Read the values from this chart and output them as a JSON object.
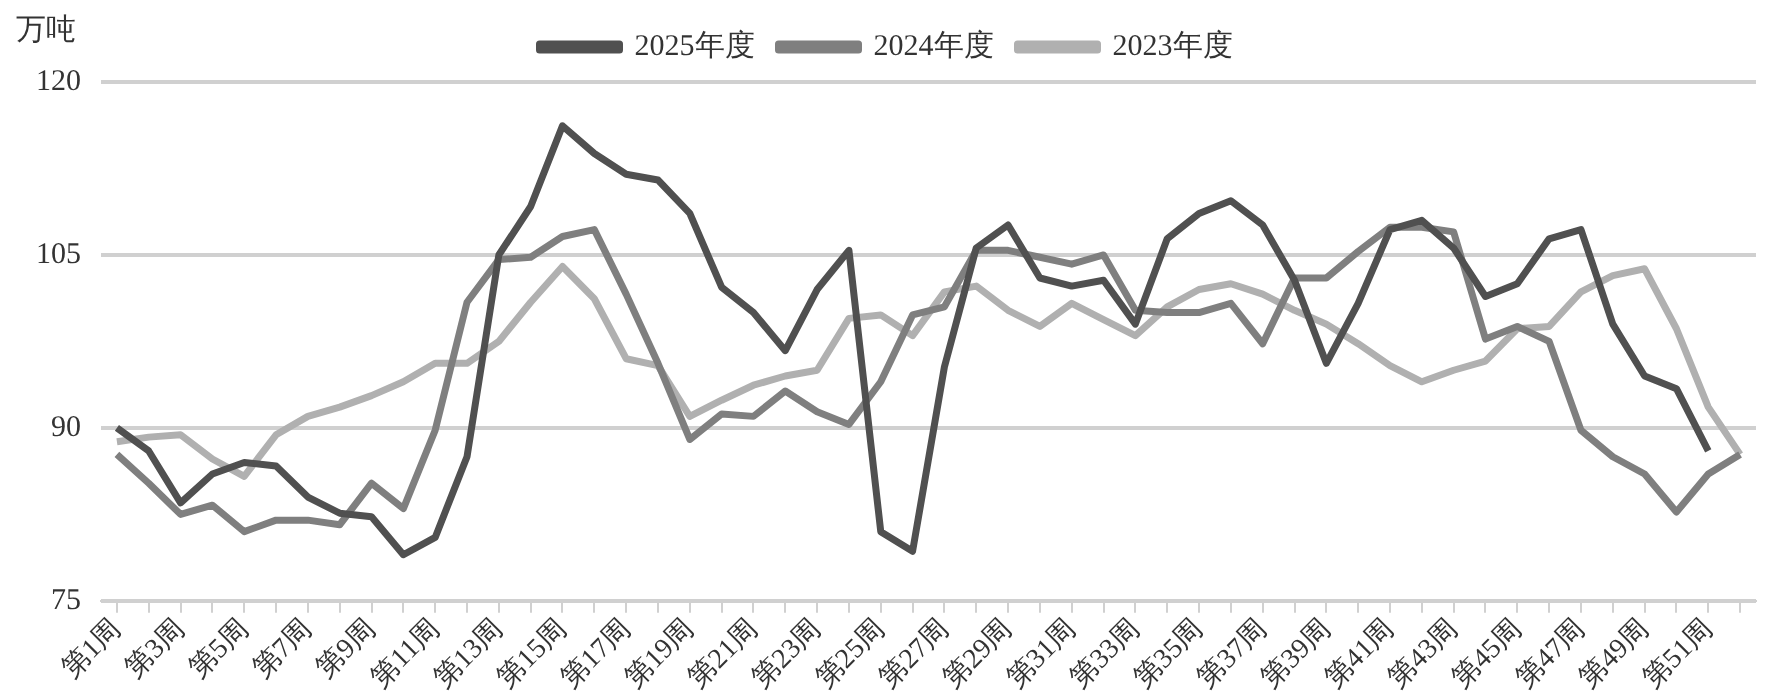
{
  "chart_data": {
    "type": "line",
    "ylabel": "万吨",
    "categories": [
      "第1周",
      null,
      "第3周",
      null,
      "第5周",
      null,
      "第7周",
      null,
      "第9周",
      null,
      "第11周",
      null,
      "第13周",
      null,
      "第15周",
      null,
      "第17周",
      null,
      "第19周",
      null,
      "第21周",
      null,
      "第23周",
      null,
      "第25周",
      null,
      "第27周",
      null,
      "第29周",
      null,
      "第31周",
      null,
      "第33周",
      null,
      "第35周",
      null,
      "第37周",
      null,
      "第39周",
      null,
      "第41周",
      null,
      "第43周",
      null,
      "第45周",
      null,
      "第47周",
      null,
      "第49周",
      null,
      "第51周",
      null
    ],
    "series": [
      {
        "name": "2025年度",
        "color": "#505050",
        "values": [
          90,
          88,
          83.5,
          86,
          87,
          86.7,
          84,
          82.6,
          82.3,
          79,
          80.5,
          87.5,
          105,
          109.2,
          116.2,
          113.8,
          112,
          111.5,
          108.6,
          102.2,
          100,
          96.7,
          102,
          105.4,
          81,
          79.3,
          95.3,
          105.6,
          107.6,
          103,
          102.3,
          102.8,
          99,
          106.4,
          108.6,
          109.7,
          107.6,
          102.8,
          95.6,
          100.8,
          107.2,
          108,
          105.6,
          101.4,
          102.5,
          106.4,
          107.2,
          99,
          94.5,
          93.4,
          88,
          null
        ]
      },
      {
        "name": "2024年度",
        "color": "#7f7f7f",
        "values": [
          87.7,
          85.2,
          82.5,
          83.3,
          81,
          82,
          82,
          81.6,
          85.2,
          83,
          89.8,
          100.9,
          104.6,
          104.8,
          106.6,
          107.2,
          101.6,
          95.6,
          89,
          91.2,
          91,
          93.2,
          91.4,
          90.3,
          94,
          99.8,
          100.5,
          105.4,
          105.4,
          104.8,
          104.2,
          105,
          100.2,
          100,
          100,
          100.8,
          97.3,
          103,
          103,
          105.3,
          107.4,
          107.4,
          107,
          97.7,
          98.8,
          97.5,
          89.8,
          87.5,
          86,
          82.7,
          86,
          87.7
        ]
      },
      {
        "name": "2023年度",
        "color": "#b0b0b0",
        "values": [
          88.8,
          89.2,
          89.4,
          87.3,
          85.8,
          89.4,
          91,
          91.8,
          92.8,
          94,
          95.6,
          95.6,
          97.5,
          100.9,
          104,
          101.2,
          96,
          95.4,
          91,
          92.4,
          93.7,
          94.5,
          95,
          99.5,
          99.8,
          98,
          101.8,
          102.3,
          100.2,
          98.8,
          100.8,
          99.4,
          98,
          100.5,
          102,
          102.5,
          101.6,
          100.2,
          99,
          97.3,
          95.4,
          94,
          95,
          95.8,
          98.6,
          98.8,
          101.8,
          103.2,
          103.8,
          98.6,
          91.8,
          87.7
        ]
      }
    ],
    "ylim": [
      75,
      120
    ],
    "yticks": [
      75,
      90,
      105,
      120
    ],
    "grid": "y",
    "legend": "top",
    "marker": "none",
    "line_style": "solid"
  }
}
